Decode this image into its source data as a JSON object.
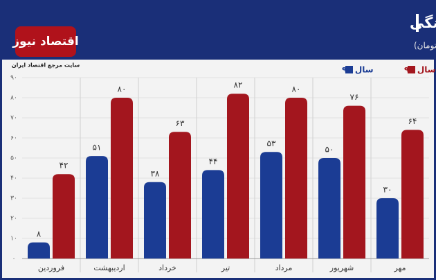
{
  "logo": {
    "name": "اقتصاد نیوز",
    "tagline": "سایت مرجع اقتصاد ایران"
  },
  "chart_data": {
    "type": "bar",
    "title": "افزایش ماهانه مقدار نقدینگی",
    "subtitle": "(واحد: هزار میلیارد تومان)",
    "categories": [
      "فروردین",
      "اردیبهشت",
      "خرداد",
      "تیر",
      "مرداد",
      "شهریور",
      "مهر"
    ],
    "series": [
      {
        "name": "سال ۹۸",
        "color": "#1b3c94",
        "values": [
          8,
          51,
          38,
          44,
          53,
          50,
          30
        ],
        "value_labels": [
          "۸",
          "۵۱",
          "۳۸",
          "۴۴",
          "۵۳",
          "۵۰",
          "۳۰"
        ]
      },
      {
        "name": "سال ۹۹",
        "color": "#a3161e",
        "values": [
          42,
          80,
          63,
          82,
          80,
          76,
          64
        ],
        "value_labels": [
          "۴۲",
          "۸۰",
          "۶۳",
          "۸۲",
          "۸۰",
          "۷۶",
          "۶۴"
        ]
      }
    ],
    "ylim": [
      0,
      90
    ],
    "yticks": [
      {
        "value": 0,
        "label": "۰"
      },
      {
        "value": 10,
        "label": "۱۰"
      },
      {
        "value": 20,
        "label": "۲۰"
      },
      {
        "value": 30,
        "label": "۳۰"
      },
      {
        "value": 40,
        "label": "۴۰"
      },
      {
        "value": 50,
        "label": "۵۰"
      },
      {
        "value": 60,
        "label": "۶۰"
      },
      {
        "value": 70,
        "label": "۷۰"
      },
      {
        "value": 80,
        "label": "۸۰"
      },
      {
        "value": 90,
        "label": "۹۰"
      }
    ],
    "grid": true,
    "legend": "top-right"
  }
}
